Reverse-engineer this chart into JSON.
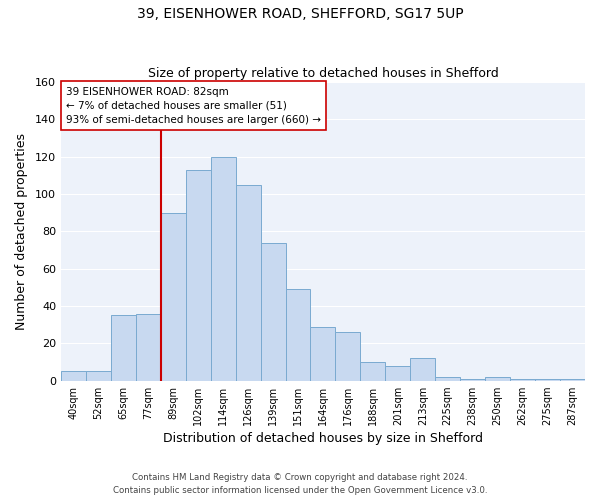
{
  "title1": "39, EISENHOWER ROAD, SHEFFORD, SG17 5UP",
  "title2": "Size of property relative to detached houses in Shefford",
  "xlabel": "Distribution of detached houses by size in Shefford",
  "ylabel": "Number of detached properties",
  "bin_labels": [
    "40sqm",
    "52sqm",
    "65sqm",
    "77sqm",
    "89sqm",
    "102sqm",
    "114sqm",
    "126sqm",
    "139sqm",
    "151sqm",
    "164sqm",
    "176sqm",
    "188sqm",
    "201sqm",
    "213sqm",
    "225sqm",
    "238sqm",
    "250sqm",
    "262sqm",
    "275sqm",
    "287sqm"
  ],
  "bar_heights": [
    5,
    5,
    35,
    36,
    90,
    113,
    120,
    105,
    74,
    49,
    29,
    26,
    10,
    8,
    12,
    2,
    1,
    2,
    1,
    1,
    1
  ],
  "bar_color": "#c8d9f0",
  "bar_edge_color": "#7aaad0",
  "vline_x": 3.5,
  "vline_color": "#cc0000",
  "annotation_line1": "39 EISENHOWER ROAD: 82sqm",
  "annotation_line2": "← 7% of detached houses are smaller (51)",
  "annotation_line3": "93% of semi-detached houses are larger (660) →",
  "annotation_box_edge": "#cc0000",
  "ylim": [
    0,
    160
  ],
  "yticks": [
    0,
    20,
    40,
    60,
    80,
    100,
    120,
    140,
    160
  ],
  "footer1": "Contains HM Land Registry data © Crown copyright and database right 2024.",
  "footer2": "Contains public sector information licensed under the Open Government Licence v3.0.",
  "bg_color": "#edf2fa",
  "grid_color": "#ffffff"
}
